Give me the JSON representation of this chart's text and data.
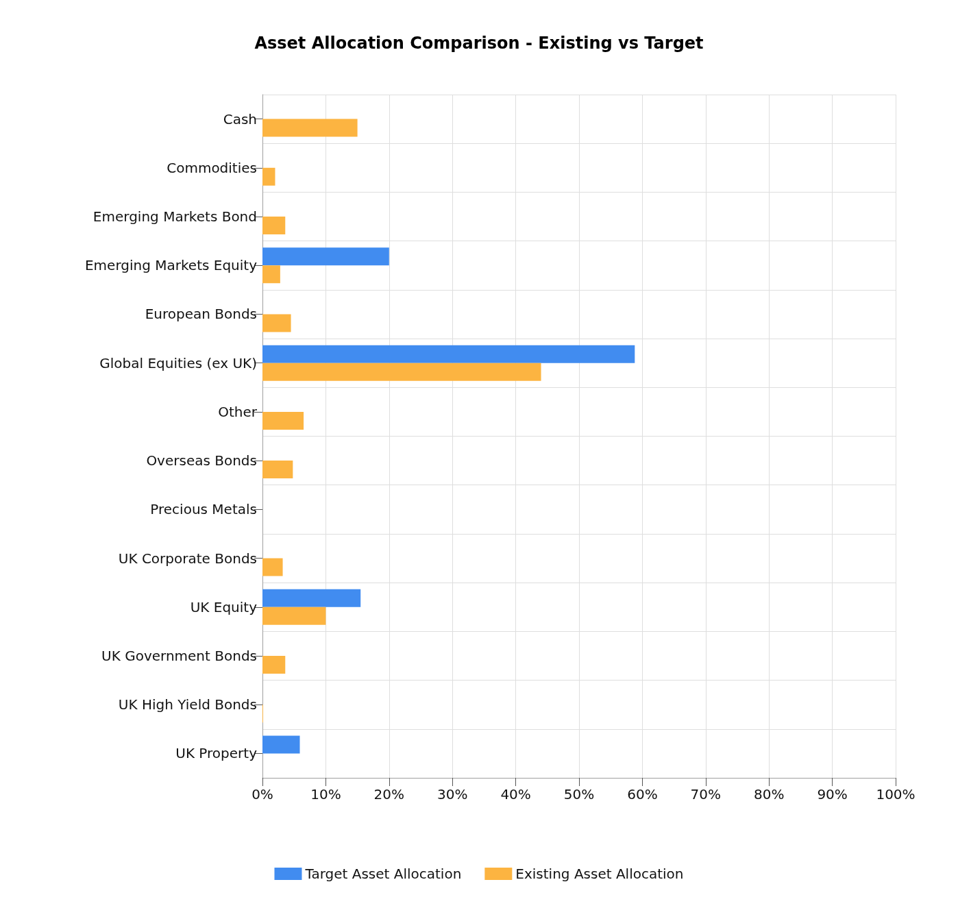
{
  "chart_data": {
    "type": "bar",
    "orientation": "horizontal",
    "title": "Asset Allocation Comparison - Existing vs Target",
    "categories": [
      "Cash",
      "Commodities",
      "Emerging Markets Bond",
      "Emerging Markets Equity",
      "European Bonds",
      "Global Equities (ex UK)",
      "Other",
      "Overseas Bonds",
      "Precious Metals",
      "UK Corporate Bonds",
      "UK Equity",
      "UK Government Bonds",
      "UK High Yield Bonds",
      "UK Property"
    ],
    "series": [
      {
        "name": "Target Asset Allocation",
        "color": "#418cf0",
        "values": [
          null,
          null,
          null,
          20,
          null,
          58.8,
          null,
          null,
          null,
          null,
          15.5,
          null,
          null,
          5.9
        ]
      },
      {
        "name": "Existing Asset Allocation",
        "color": "#fcb441",
        "values": [
          15,
          2,
          3.6,
          2.8,
          4.5,
          44,
          6.5,
          4.8,
          null,
          3.2,
          10,
          3.6,
          0.1,
          null
        ]
      }
    ],
    "xlim": [
      0,
      100
    ],
    "xticks": [
      {
        "value": 0,
        "label": "0%"
      },
      {
        "value": 10,
        "label": "10%"
      },
      {
        "value": 20,
        "label": "20%"
      },
      {
        "value": 30,
        "label": "30%"
      },
      {
        "value": 40,
        "label": "40%"
      },
      {
        "value": 50,
        "label": "50%"
      },
      {
        "value": 60,
        "label": "60%"
      },
      {
        "value": 70,
        "label": "70%"
      },
      {
        "value": 80,
        "label": "80%"
      },
      {
        "value": 90,
        "label": "90%"
      },
      {
        "value": 100,
        "label": "100%"
      }
    ],
    "grid": true,
    "legend": "bottom"
  }
}
